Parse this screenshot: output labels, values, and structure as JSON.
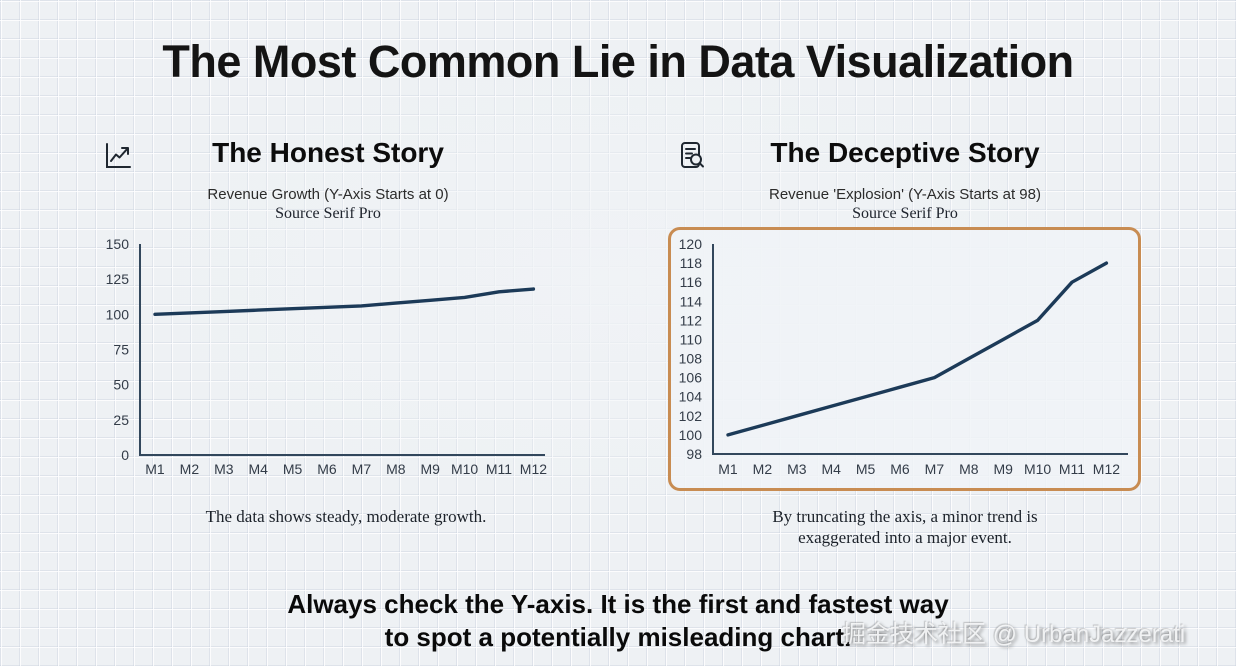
{
  "title": "The Most Common Lie in Data Visualization",
  "panels": {
    "honest": {
      "icon": "line-chart-icon",
      "heading": "The Honest Story",
      "subtitle": "Revenue Growth (Y-Axis Starts at 0)",
      "source_label": "Source Serif Pro",
      "caption": "The data shows steady, moderate growth."
    },
    "deceptive": {
      "icon": "document-search-icon",
      "heading": "The Deceptive Story",
      "subtitle": "Revenue 'Explosion' (Y-Axis Starts at 98)",
      "source_label": "Source Serif Pro",
      "caption_lines": [
        "By truncating the axis, a minor trend is",
        "exaggerated into a major event."
      ]
    }
  },
  "footer": {
    "lines": [
      "Always check the Y-axis. It is the first and fastest way",
      "to spot a potentially misleading chart."
    ]
  },
  "watermark": "掘金技术社区 @ UrbanJazzerati",
  "colors": {
    "line": "#1c3a58",
    "axis": "#32475c",
    "tick_label": "#333c48",
    "highlight_border": "#c88c52"
  },
  "chart_data": [
    {
      "type": "line",
      "panel": "honest",
      "title": "Revenue Growth (Y-Axis Starts at 0)",
      "categories": [
        "M1",
        "M2",
        "M3",
        "M4",
        "M5",
        "M6",
        "M7",
        "M8",
        "M9",
        "M10",
        "M11",
        "M12"
      ],
      "values": [
        100,
        101,
        102,
        103,
        104,
        105,
        106,
        108,
        110,
        112,
        116,
        118
      ],
      "ylim": [
        0,
        150
      ],
      "ytick_step": 25,
      "grid": false,
      "legend": "none"
    },
    {
      "type": "line",
      "panel": "deceptive",
      "title": "Revenue 'Explosion' (Y-Axis Starts at 98)",
      "categories": [
        "M1",
        "M2",
        "M3",
        "M4",
        "M5",
        "M6",
        "M7",
        "M8",
        "M9",
        "M10",
        "M11",
        "M12"
      ],
      "values": [
        100,
        101,
        102,
        103,
        104,
        105,
        106,
        108,
        110,
        112,
        116,
        118
      ],
      "ylim": [
        98,
        120
      ],
      "ytick_step": 2,
      "grid": false,
      "legend": "none"
    }
  ]
}
